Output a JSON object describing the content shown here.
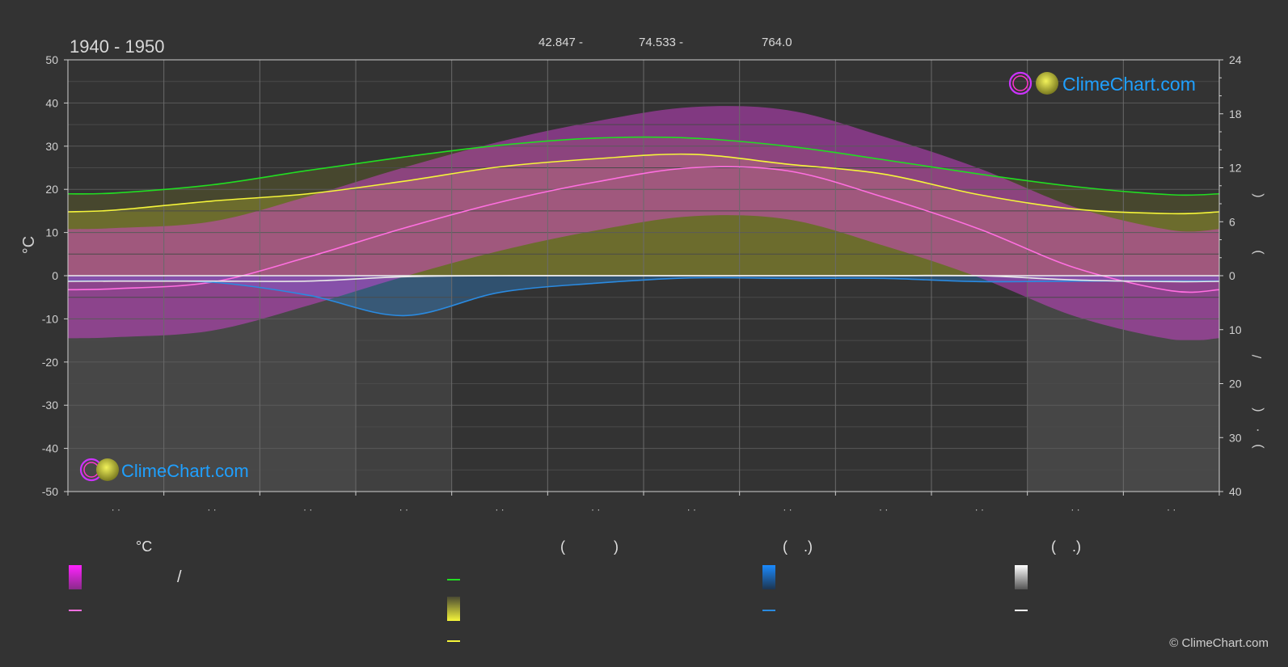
{
  "header": {
    "period": "1940 - 1950",
    "latitude": "42.847 -",
    "longitude": "74.533 -",
    "elevation": "764.0"
  },
  "logo": {
    "text": "ClimeChart.com"
  },
  "copyright": "© ClimeChart.com",
  "legend": {
    "col1_heading": "°C",
    "col2_heading": "(            )",
    "col3_heading": "(    .)",
    "col4_heading": "(    .)",
    "slash": "/"
  },
  "colors": {
    "background": "#333333",
    "daylight": "#22dd22",
    "sunshine": "#f5f53a",
    "temp_mean": "#ff6fe0",
    "temp_range": "#e040e0",
    "precipitation": "#2a8ae0",
    "snow": "#e8e8e8",
    "logo_text": "#1fa0ff"
  },
  "chart_data": {
    "type": "area",
    "title": "",
    "period": "1940 - 1950",
    "x_months": [
      1,
      2,
      3,
      4,
      5,
      6,
      7,
      8,
      9,
      10,
      11,
      12
    ],
    "x_tick_labels": [
      "· ·",
      "· ·",
      "· ·",
      "· ·",
      "· ·",
      "· ·",
      "· ·",
      "· ·",
      "· ·",
      "· ·",
      "· ·",
      "· ·"
    ],
    "y_left": {
      "label": "°C",
      "ticks": [
        50,
        40,
        30,
        20,
        10,
        0,
        -10,
        -20,
        -30,
        -40,
        -50
      ],
      "range": [
        -50,
        50
      ]
    },
    "y_right_top": {
      "ticks": [
        24,
        18,
        12,
        6,
        0
      ],
      "range": [
        0,
        24
      ]
    },
    "y_right_bottom": {
      "ticks": [
        0,
        10,
        20,
        30,
        40
      ],
      "range": [
        0,
        40
      ],
      "labels": [
        "(",
        ")",
        "/",
        "(",
        "·",
        ")"
      ]
    },
    "grid": true,
    "series": [
      {
        "key": "daylight_hours",
        "axis": "right_top",
        "values": [
          9.2,
          10.1,
          11.7,
          13.2,
          14.5,
          15.3,
          15.3,
          14.4,
          12.9,
          11.3,
          9.9,
          9.0
        ]
      },
      {
        "key": "sunshine_hours",
        "axis": "right_top",
        "values": [
          7.3,
          8.3,
          9.1,
          10.5,
          12.1,
          13.0,
          13.5,
          12.4,
          11.3,
          9.0,
          7.4,
          6.9
        ]
      },
      {
        "key": "temp_mean_c",
        "axis": "left",
        "values": [
          -3.0,
          -1.5,
          4.3,
          11.0,
          17.0,
          21.7,
          25.0,
          24.3,
          18.2,
          10.8,
          1.8,
          -3.5
        ]
      },
      {
        "key": "precipitation_mm_day",
        "axis": "right_bottom",
        "values": [
          1.0,
          1.2,
          3.6,
          7.4,
          3.1,
          1.4,
          0.4,
          0.5,
          0.5,
          1.1,
          1.0,
          1.0
        ]
      },
      {
        "key": "snow_cm_day",
        "axis": "right_bottom",
        "values": [
          1.0,
          1.0,
          1.0,
          0.2,
          0,
          0,
          0,
          0,
          0,
          0,
          0.8,
          1.1
        ]
      }
    ]
  }
}
